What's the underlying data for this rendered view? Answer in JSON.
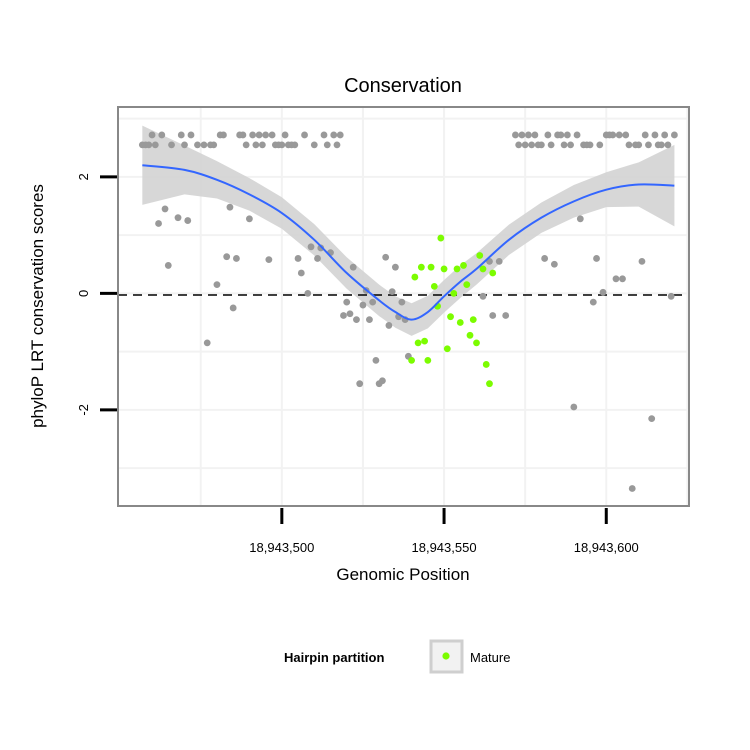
{
  "chart_data": {
    "type": "scatter",
    "title": "Conservation",
    "xlabel": "Genomic Position",
    "ylabel": "phyloP LRT conservation scores",
    "xlim": [
      18943449.5,
      18943625.5
    ],
    "ylim": [
      -3.65,
      3.2
    ],
    "x_ticks": [
      18943500,
      18943550,
      18943600
    ],
    "x_tick_labels": [
      "18,943,500",
      "18,943,550",
      "18,943,600"
    ],
    "y_ticks": [
      -2,
      0,
      2
    ],
    "y_tick_labels": [
      "-2",
      "0",
      "2"
    ],
    "reference_line": {
      "y": 0,
      "style": "dashed"
    },
    "legend": {
      "title": "Hairpin partition",
      "position": "bottom",
      "entries": [
        {
          "label": "Mature",
          "color": "#7cfc00"
        }
      ]
    },
    "colors": {
      "other": "#999999",
      "mature": "#7cfc00",
      "smooth_line": "#3366ff",
      "smooth_band": "#d3d3d3",
      "panel_border": "#888888",
      "grid": "#f2f2f2"
    },
    "series": [
      {
        "name": "Other",
        "points": [
          [
            18943457,
            2.55
          ],
          [
            18943458,
            2.55
          ],
          [
            18943459,
            2.55
          ],
          [
            18943460,
            2.72
          ],
          [
            18943461,
            2.55
          ],
          [
            18943462,
            1.2
          ],
          [
            18943463,
            2.72
          ],
          [
            18943464,
            1.45
          ],
          [
            18943465,
            0.48
          ],
          [
            18943466,
            2.55
          ],
          [
            18943468,
            1.3
          ],
          [
            18943469,
            2.72
          ],
          [
            18943470,
            2.55
          ],
          [
            18943471,
            1.25
          ],
          [
            18943472,
            2.72
          ],
          [
            18943474,
            2.55
          ],
          [
            18943476,
            2.55
          ],
          [
            18943477,
            -0.85
          ],
          [
            18943478,
            2.55
          ],
          [
            18943479,
            2.55
          ],
          [
            18943480,
            0.15
          ],
          [
            18943481,
            2.72
          ],
          [
            18943482,
            2.72
          ],
          [
            18943483,
            0.63
          ],
          [
            18943484,
            1.48
          ],
          [
            18943485,
            -0.25
          ],
          [
            18943486,
            0.6
          ],
          [
            18943487,
            2.72
          ],
          [
            18943488,
            2.72
          ],
          [
            18943489,
            2.55
          ],
          [
            18943490,
            1.28
          ],
          [
            18943491,
            2.72
          ],
          [
            18943492,
            2.55
          ],
          [
            18943493,
            2.72
          ],
          [
            18943494,
            2.55
          ],
          [
            18943495,
            2.72
          ],
          [
            18943496,
            0.58
          ],
          [
            18943497,
            2.72
          ],
          [
            18943498,
            2.55
          ],
          [
            18943499,
            2.55
          ],
          [
            18943500,
            2.55
          ],
          [
            18943501,
            2.72
          ],
          [
            18943502,
            2.55
          ],
          [
            18943503,
            2.55
          ],
          [
            18943504,
            2.55
          ],
          [
            18943505,
            0.6
          ],
          [
            18943506,
            0.35
          ],
          [
            18943507,
            2.72
          ],
          [
            18943508,
            0.0
          ],
          [
            18943509,
            0.8
          ],
          [
            18943510,
            2.55
          ],
          [
            18943511,
            0.6
          ],
          [
            18943512,
            0.78
          ],
          [
            18943513,
            2.72
          ],
          [
            18943514,
            2.55
          ],
          [
            18943515,
            0.7
          ],
          [
            18943516,
            2.72
          ],
          [
            18943517,
            2.55
          ],
          [
            18943518,
            2.72
          ],
          [
            18943519,
            -0.38
          ],
          [
            18943520,
            -0.15
          ],
          [
            18943521,
            -0.35
          ],
          [
            18943522,
            0.45
          ],
          [
            18943523,
            -0.45
          ],
          [
            18943524,
            -1.55
          ],
          [
            18943525,
            -0.2
          ],
          [
            18943526,
            0.05
          ],
          [
            18943527,
            -0.45
          ],
          [
            18943528,
            -0.15
          ],
          [
            18943529,
            -1.15
          ],
          [
            18943530,
            -1.55
          ],
          [
            18943531,
            -1.5
          ],
          [
            18943532,
            0.62
          ],
          [
            18943533,
            -0.55
          ],
          [
            18943534,
            0.03
          ],
          [
            18943535,
            0.45
          ],
          [
            18943536,
            -0.4
          ],
          [
            18943537,
            -0.15
          ],
          [
            18943538,
            -0.45
          ],
          [
            18943539,
            -1.08
          ],
          [
            18943562,
            -0.05
          ],
          [
            18943564,
            0.55
          ],
          [
            18943565,
            -0.38
          ],
          [
            18943567,
            0.55
          ],
          [
            18943569,
            -0.38
          ],
          [
            18943572,
            2.72
          ],
          [
            18943573,
            2.55
          ],
          [
            18943574,
            2.72
          ],
          [
            18943575,
            2.55
          ],
          [
            18943576,
            2.72
          ],
          [
            18943577,
            2.55
          ],
          [
            18943578,
            2.72
          ],
          [
            18943579,
            2.55
          ],
          [
            18943580,
            2.55
          ],
          [
            18943581,
            0.6
          ],
          [
            18943582,
            2.72
          ],
          [
            18943583,
            2.55
          ],
          [
            18943584,
            0.5
          ],
          [
            18943585,
            2.72
          ],
          [
            18943586,
            2.72
          ],
          [
            18943587,
            2.55
          ],
          [
            18943588,
            2.72
          ],
          [
            18943589,
            2.55
          ],
          [
            18943590,
            -1.95
          ],
          [
            18943591,
            2.72
          ],
          [
            18943592,
            1.28
          ],
          [
            18943593,
            2.55
          ],
          [
            18943594,
            2.55
          ],
          [
            18943595,
            2.55
          ],
          [
            18943596,
            -0.15
          ],
          [
            18943597,
            0.6
          ],
          [
            18943598,
            2.55
          ],
          [
            18943599,
            0.02
          ],
          [
            18943600,
            2.72
          ],
          [
            18943601,
            2.72
          ],
          [
            18943602,
            2.72
          ],
          [
            18943603,
            0.25
          ],
          [
            18943604,
            2.72
          ],
          [
            18943605,
            0.25
          ],
          [
            18943606,
            2.72
          ],
          [
            18943607,
            2.55
          ],
          [
            18943608,
            -3.35
          ],
          [
            18943609,
            2.55
          ],
          [
            18943610,
            2.55
          ],
          [
            18943611,
            0.55
          ],
          [
            18943612,
            2.72
          ],
          [
            18943613,
            2.55
          ],
          [
            18943614,
            -2.15
          ],
          [
            18943615,
            2.72
          ],
          [
            18943616,
            2.55
          ],
          [
            18943617,
            2.55
          ],
          [
            18943618,
            2.72
          ],
          [
            18943619,
            2.55
          ],
          [
            18943620,
            -0.05
          ],
          [
            18943621,
            2.72
          ]
        ]
      },
      {
        "name": "Mature",
        "points": [
          [
            18943540,
            -1.15
          ],
          [
            18943541,
            0.28
          ],
          [
            18943542,
            -0.85
          ],
          [
            18943543,
            0.45
          ],
          [
            18943544,
            -0.82
          ],
          [
            18943545,
            -1.15
          ],
          [
            18943546,
            0.45
          ],
          [
            18943547,
            0.12
          ],
          [
            18943548,
            -0.22
          ],
          [
            18943549,
            0.95
          ],
          [
            18943550,
            0.42
          ],
          [
            18943551,
            -0.95
          ],
          [
            18943552,
            -0.4
          ],
          [
            18943553,
            0.0
          ],
          [
            18943554,
            0.42
          ],
          [
            18943555,
            -0.5
          ],
          [
            18943556,
            0.48
          ],
          [
            18943557,
            0.15
          ],
          [
            18943558,
            -0.72
          ],
          [
            18943559,
            -0.45
          ],
          [
            18943560,
            -0.85
          ],
          [
            18943561,
            0.65
          ],
          [
            18943562,
            0.42
          ],
          [
            18943563,
            -1.22
          ],
          [
            18943564,
            -1.55
          ],
          [
            18943565,
            0.35
          ]
        ]
      }
    ],
    "smooth": {
      "method": "loess",
      "x": [
        18943457,
        18943470,
        18943480,
        18943490,
        18943500,
        18943510,
        18943520,
        18943530,
        18943535,
        18943540,
        18943545,
        18943550,
        18943555,
        18943560,
        18943570,
        18943580,
        18943590,
        18943600,
        18943610,
        18943621
      ],
      "y": [
        2.2,
        2.12,
        1.95,
        1.7,
        1.38,
        0.92,
        0.35,
        -0.12,
        -0.32,
        -0.45,
        -0.32,
        -0.05,
        0.2,
        0.42,
        0.92,
        1.3,
        1.58,
        1.78,
        1.87,
        1.85
      ],
      "se": [
        0.68,
        0.42,
        0.32,
        0.28,
        0.27,
        0.27,
        0.27,
        0.27,
        0.27,
        0.28,
        0.28,
        0.28,
        0.28,
        0.27,
        0.26,
        0.26,
        0.28,
        0.3,
        0.38,
        0.7
      ]
    }
  }
}
